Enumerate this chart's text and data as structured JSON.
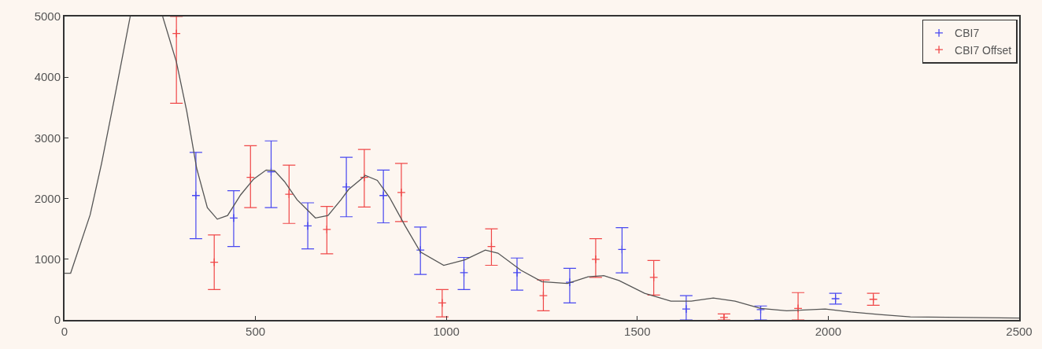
{
  "chart_data": {
    "type": "scatter",
    "xlim": [
      0,
      2500
    ],
    "ylim": [
      0,
      5000
    ],
    "xticks": [
      0,
      500,
      1000,
      1500,
      2000,
      2500
    ],
    "yticks": [
      0,
      1000,
      2000,
      3000,
      4000,
      5000
    ],
    "grid": false,
    "legend": "top right",
    "marker": "cross",
    "series": [
      {
        "name": "CBI7",
        "color": "#4848f0",
        "x": [
          344,
          443,
          541,
          637,
          738,
          835,
          932,
          1046,
          1185,
          1323,
          1460,
          1628,
          1823,
          2019
        ],
        "values": [
          2050,
          1680,
          2440,
          1550,
          2190,
          2050,
          1150,
          780,
          780,
          620,
          1160,
          180,
          170,
          350
        ],
        "errors": [
          [
            1340,
            2760
          ],
          [
            1210,
            2130
          ],
          [
            1850,
            2950
          ],
          [
            1170,
            1930
          ],
          [
            1700,
            2680
          ],
          [
            1600,
            2470
          ],
          [
            750,
            1530
          ],
          [
            500,
            1030
          ],
          [
            490,
            1020
          ],
          [
            280,
            850
          ],
          [
            775,
            1520
          ],
          [
            0,
            400
          ],
          [
            0,
            230
          ],
          [
            260,
            440
          ]
        ]
      },
      {
        "name": "CBI7 Offset",
        "color": "#f04848",
        "x": [
          293,
          392,
          487,
          588,
          687,
          785,
          882,
          989,
          1118,
          1254,
          1391,
          1543,
          1727,
          1921,
          2118
        ],
        "values": [
          4720,
          950,
          2350,
          2070,
          1490,
          2350,
          2100,
          280,
          1210,
          400,
          1000,
          700,
          40,
          190,
          340
        ],
        "errors": [
          [
            3570,
            5000
          ],
          [
            500,
            1400
          ],
          [
            1850,
            2870
          ],
          [
            1590,
            2550
          ],
          [
            1090,
            1870
          ],
          [
            1860,
            2810
          ],
          [
            1620,
            2580
          ],
          [
            50,
            500
          ],
          [
            900,
            1500
          ],
          [
            150,
            660
          ],
          [
            700,
            1340
          ],
          [
            410,
            980
          ],
          [
            0,
            100
          ],
          [
            0,
            450
          ],
          [
            240,
            440
          ]
        ]
      },
      {
        "type": "line",
        "marker": "none",
        "color": "#555555",
        "x": [
          0,
          16,
          67,
          97,
          131,
          172,
          220,
          257,
          293,
          320,
          346,
          374,
          400,
          427,
          461,
          495,
          528,
          550,
          576,
          609,
          657,
          690,
          724,
          744,
          788,
          819,
          851,
          892,
          932,
          993,
          1048,
          1102,
          1135,
          1195,
          1250,
          1317,
          1371,
          1412,
          1452,
          1519,
          1588,
          1641,
          1699,
          1756,
          1823,
          1891,
          1992,
          2059,
          2134,
          2215,
          2500
        ],
        "values": [
          770,
          770,
          1730,
          2580,
          3660,
          5000,
          null,
          5000,
          4250,
          3440,
          2500,
          1850,
          1660,
          1720,
          2060,
          2320,
          2470,
          2460,
          2280,
          1980,
          1680,
          1720,
          1980,
          2150,
          2380,
          2300,
          2020,
          1550,
          1120,
          900,
          990,
          1150,
          1100,
          820,
          630,
          600,
          710,
          730,
          650,
          440,
          310,
          310,
          360,
          310,
          190,
          150,
          180,
          130,
          90,
          50,
          30
        ]
      }
    ]
  }
}
